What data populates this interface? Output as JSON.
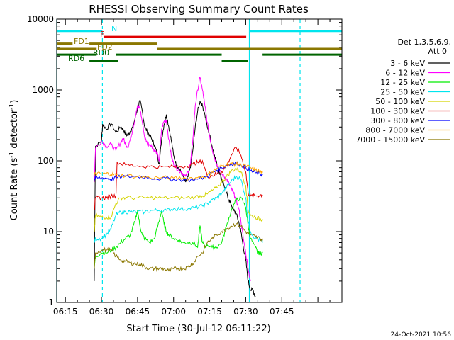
{
  "chart_data": {
    "type": "line",
    "title": "RHESSI Observing Summary Count Rates",
    "xlabel": "Start Time (30-Jul-12 06:11:22)",
    "ylabel_main": "Count Rate (s",
    "ylabel_sup1": "-1",
    "ylabel_mid": " detector",
    "ylabel_sup2": "-1",
    "ylabel_end": ")",
    "timestamp": "24-Oct-2021 10:56",
    "yscale": "log",
    "ylim": [
      1,
      10000
    ],
    "xlim_minutes": [
      371.4,
      490.0
    ],
    "y_ticks": [
      {
        "value": 1,
        "label": "1"
      },
      {
        "value": 10,
        "label": "10"
      },
      {
        "value": 100,
        "label": "100"
      },
      {
        "value": 1000,
        "label": "1000"
      },
      {
        "value": 10000,
        "label": "10000"
      }
    ],
    "x_ticks": [
      {
        "value": 375,
        "label": "06:15"
      },
      {
        "value": 390,
        "label": "06:30"
      },
      {
        "value": 405,
        "label": "06:45"
      },
      {
        "value": 420,
        "label": "07:00"
      },
      {
        "value": 435,
        "label": "07:15"
      },
      {
        "value": 450,
        "label": "07:30"
      },
      {
        "value": 465,
        "label": "07:45"
      }
    ],
    "legend_header": [
      "Det 1,3,5,6,9,",
      "Att 0"
    ],
    "flag_labels": {
      "N": "N",
      "F": "F",
      "FD1": "FD1",
      "FD2": "FD2",
      "RD0": "RD0",
      "RD6": "RD6"
    },
    "flag_bars": [
      {
        "label": "N",
        "color": "#00e5ee",
        "y": 6800,
        "segments": [
          [
            371.4,
            390.4
          ],
          [
            451.5,
            490.0
          ]
        ]
      },
      {
        "label": "F",
        "color": "#e00000",
        "y": 5600,
        "segments": [
          [
            391.0,
            450.2
          ]
        ]
      },
      {
        "label": "FD1",
        "color": "#8b7700",
        "y": 4500,
        "segments": [
          [
            371.4,
            378.0
          ],
          [
            385.0,
            413.0
          ]
        ]
      },
      {
        "label": "FD2",
        "color": "#8b7700",
        "y": 3800,
        "segments": [
          [
            371.4,
            388.0
          ],
          [
            413.0,
            490.0
          ]
        ]
      },
      {
        "label": "RD0",
        "color": "#006400",
        "y": 3150,
        "segments": [
          [
            371.4,
            388.0
          ],
          [
            396.0,
            440.0
          ],
          [
            457.0,
            490.0
          ]
        ]
      },
      {
        "label": "RD6",
        "color": "#006400",
        "y": 2600,
        "segments": [
          [
            385.0,
            397.0
          ],
          [
            440.0,
            451.0
          ]
        ]
      }
    ],
    "vlines": [
      {
        "x": 371.4,
        "color": "#00e5ee",
        "dash": false
      },
      {
        "x": 390.4,
        "color": "#00e5ee",
        "dash": true
      },
      {
        "x": 451.5,
        "color": "#00e5ee",
        "dash": false
      },
      {
        "x": 472.6,
        "color": "#00e5ee",
        "dash": true
      }
    ],
    "series": [
      {
        "name": "3 - 6 keV",
        "color": "#000000",
        "x": [
          387,
          387.5,
          390,
          390.5,
          392,
          394,
          396,
          398,
          399,
          400,
          401,
          402,
          403,
          404,
          405,
          406,
          407,
          408,
          409,
          410,
          411,
          412,
          413,
          414,
          415,
          416,
          417,
          418,
          419,
          420,
          421,
          422,
          423,
          424,
          425,
          426,
          427,
          428,
          429,
          430,
          431,
          432,
          433,
          434,
          435,
          436,
          437,
          438,
          439,
          440,
          441,
          442,
          443,
          444,
          445,
          446,
          447,
          448,
          449,
          450,
          451,
          452,
          453,
          454
        ],
        "y": [
          2,
          160,
          190,
          330,
          280,
          340,
          250,
          300,
          280,
          240,
          230,
          260,
          300,
          400,
          550,
          700,
          500,
          300,
          260,
          230,
          200,
          170,
          130,
          90,
          200,
          320,
          450,
          300,
          200,
          120,
          90,
          80,
          70,
          60,
          50,
          60,
          80,
          140,
          300,
          500,
          700,
          600,
          450,
          300,
          230,
          160,
          120,
          90,
          70,
          55,
          45,
          35,
          28,
          24,
          20,
          18,
          14,
          10,
          6,
          4,
          2,
          1.5,
          1.5,
          1.2
        ]
      },
      {
        "name": "6 - 12 keV",
        "color": "#ff00ff",
        "x": [
          387,
          387.5,
          390,
          392,
          394,
          396,
          398,
          399,
          400,
          401,
          402,
          403,
          404,
          405,
          406,
          407,
          408,
          409,
          410,
          411,
          412,
          413,
          414,
          415,
          416,
          417,
          418,
          419,
          420,
          421,
          422,
          423,
          424,
          425,
          426,
          427,
          428,
          429,
          430,
          431,
          432,
          433,
          434,
          435,
          436,
          437,
          438,
          439,
          440,
          441,
          442,
          443,
          444,
          445,
          446,
          447,
          448,
          449,
          450,
          451,
          452
        ],
        "y": [
          50,
          150,
          190,
          160,
          170,
          140,
          180,
          210,
          170,
          160,
          200,
          280,
          400,
          600,
          550,
          350,
          210,
          180,
          170,
          160,
          140,
          130,
          100,
          280,
          360,
          370,
          200,
          120,
          90,
          80,
          75,
          70,
          65,
          60,
          70,
          90,
          200,
          600,
          1000,
          1500,
          1000,
          600,
          350,
          220,
          150,
          110,
          90,
          75,
          65,
          60,
          55,
          48,
          40,
          35,
          28,
          22,
          14,
          8,
          5,
          3,
          2
        ]
      },
      {
        "name": "12 - 25 keV",
        "color": "#00ee00",
        "x": [
          387,
          387.5,
          390,
          392,
          394,
          396,
          398,
          400,
          402,
          404,
          405,
          406,
          407,
          408,
          410,
          412,
          414,
          415,
          416,
          417,
          418,
          420,
          422,
          424,
          426,
          428,
          430,
          431,
          432,
          433,
          434,
          436,
          438,
          440,
          442,
          444,
          446,
          448,
          450,
          451,
          452,
          454,
          455,
          456,
          457
        ],
        "y": [
          3,
          4.5,
          5,
          5,
          5.5,
          6,
          7,
          8,
          9,
          14,
          20,
          12,
          9,
          8,
          7,
          8,
          14,
          20,
          13,
          10,
          9,
          8,
          7.5,
          7,
          7,
          7,
          6,
          12,
          7,
          6,
          6.5,
          6,
          6,
          7,
          12,
          20,
          28,
          30,
          22,
          12,
          8,
          6,
          5,
          5,
          5
        ]
      },
      {
        "name": "25 - 50 keV",
        "color": "#00e5ee",
        "x": [
          387,
          387.5,
          390,
          392,
          394,
          396,
          398,
          400,
          402,
          405,
          408,
          411,
          414,
          417,
          420,
          423,
          426,
          429,
          432,
          434,
          436,
          438,
          440,
          442,
          444,
          446,
          448,
          450,
          451,
          452,
          454,
          456,
          457
        ],
        "y": [
          7,
          8,
          8,
          9,
          11,
          17,
          19,
          19,
          19,
          19,
          19,
          20,
          20,
          20,
          21,
          21,
          21,
          22,
          23,
          25,
          28,
          30,
          35,
          42,
          52,
          60,
          55,
          30,
          14,
          10,
          8,
          7.5,
          7
        ]
      },
      {
        "name": "50 - 100 keV",
        "color": "#d4d400",
        "x": [
          387,
          387.5,
          390,
          392,
          394,
          396,
          398,
          400,
          405,
          410,
          415,
          420,
          425,
          429,
          432,
          434,
          436,
          438,
          440,
          442,
          444,
          446,
          448,
          450,
          451,
          452,
          454,
          456,
          457
        ],
        "y": [
          10,
          17,
          16,
          16,
          16,
          25,
          30,
          30,
          30,
          30,
          30,
          30,
          30,
          31,
          32,
          34,
          38,
          42,
          50,
          60,
          72,
          78,
          70,
          45,
          20,
          17,
          16,
          15,
          15
        ]
      },
      {
        "name": "100 - 300 keV",
        "color": "#e00000",
        "x": [
          387,
          387.5,
          390,
          392,
          394,
          396,
          396.5,
          400,
          405,
          410,
          415,
          420,
          425,
          428,
          430,
          432,
          434,
          436,
          438,
          440,
          442,
          444,
          446,
          448,
          450,
          451,
          452,
          454,
          456,
          457
        ],
        "y": [
          20,
          30,
          30,
          30,
          32,
          32,
          95,
          88,
          85,
          83,
          82,
          82,
          84,
          90,
          95,
          100,
          60,
          62,
          65,
          70,
          85,
          120,
          155,
          120,
          70,
          35,
          32,
          32,
          33,
          33
        ]
      },
      {
        "name": "300 - 800 keV",
        "color": "#0000ff",
        "x": [
          387,
          387.5,
          390,
          392,
          394,
          396,
          400,
          405,
          410,
          415,
          420,
          425,
          430,
          434,
          436,
          438,
          440,
          442,
          444,
          446,
          448,
          450,
          452,
          454,
          456,
          457
        ],
        "y": [
          55,
          57,
          57,
          57,
          55,
          58,
          60,
          60,
          58,
          56,
          55,
          54,
          55,
          60,
          68,
          74,
          80,
          86,
          90,
          92,
          88,
          80,
          72,
          68,
          65,
          63
        ]
      },
      {
        "name": "800 - 7000 keV",
        "color": "#ffa500",
        "x": [
          387,
          387.5,
          390,
          392,
          394,
          396,
          400,
          405,
          410,
          415,
          420,
          425,
          430,
          434,
          436,
          438,
          440,
          442,
          444,
          446,
          448,
          450,
          452,
          454,
          456,
          457
        ],
        "y": [
          63,
          66,
          65,
          66,
          65,
          63,
          62,
          60,
          58,
          58,
          57,
          57,
          58,
          62,
          70,
          78,
          85,
          88,
          90,
          90,
          88,
          85,
          80,
          74,
          70,
          68
        ]
      },
      {
        "name": "7000 - 15000 keV",
        "color": "#8b7700",
        "x": [
          387,
          387.5,
          390,
          392,
          394,
          396,
          398,
          400,
          402,
          404,
          406,
          408,
          410,
          412,
          414,
          416,
          418,
          420,
          422,
          424,
          426,
          428,
          430,
          432,
          434,
          436,
          438,
          440,
          442,
          444,
          446,
          448,
          450,
          452,
          454,
          456,
          457
        ],
        "y": [
          3,
          5,
          5.5,
          5.5,
          5.5,
          4.5,
          4,
          3.8,
          3.6,
          3.5,
          3.5,
          3.2,
          3,
          3,
          3,
          3,
          2.8,
          3,
          3,
          3,
          3.2,
          3.5,
          4.5,
          5,
          7,
          8,
          9,
          10,
          11,
          12,
          13,
          12,
          10,
          9,
          8.5,
          8,
          7.5
        ]
      }
    ]
  }
}
